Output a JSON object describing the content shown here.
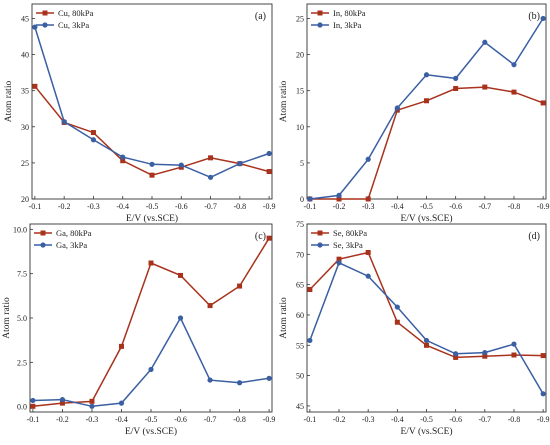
{
  "colors": {
    "series_80": "#a8321c",
    "series_3": "#3a5fa3",
    "axis": "#333333"
  },
  "chart_data": [
    {
      "type": "line",
      "panel_label": "(a)",
      "xlabel": "E/V (vs.SCE)",
      "ylabel": "Atom ratio",
      "x": [
        "-0.1",
        "-0.2",
        "-0.3",
        "-0.4",
        "-0.5",
        "-0.6",
        "-0.7",
        "-0.8",
        "-0.9"
      ],
      "ylim": [
        20,
        47
      ],
      "yticks": [
        20,
        25,
        30,
        35,
        40,
        45
      ],
      "ytick_labels": [
        "20",
        "25",
        "30",
        "35",
        "40",
        "45"
      ],
      "legend_position": "top-left",
      "series": [
        {
          "name": "Cu, 80kPa",
          "values": [
            35.6,
            30.6,
            29.2,
            25.3,
            23.3,
            24.4,
            25.7,
            24.9,
            23.8
          ]
        },
        {
          "name": "Cu, 3kPa",
          "values": [
            43.8,
            30.7,
            28.2,
            25.8,
            24.8,
            24.7,
            23.0,
            24.9,
            26.3
          ]
        }
      ]
    },
    {
      "type": "line",
      "panel_label": "(b)",
      "xlabel": "E/V (vs.SCE)",
      "ylabel": "Atom ratio",
      "x": [
        "-0.1",
        "-0.2",
        "-0.3",
        "-0.4",
        "-0.5",
        "-0.6",
        "-0.7",
        "-0.8",
        "-0.9"
      ],
      "ylim": [
        0,
        27
      ],
      "yticks": [
        0,
        5,
        10,
        15,
        20,
        25
      ],
      "ytick_labels": [
        "0",
        "5",
        "10",
        "15",
        "20",
        "25"
      ],
      "legend_position": "top-left",
      "series": [
        {
          "name": "In, 80kPa",
          "values": [
            0,
            0,
            0,
            12.3,
            13.6,
            15.3,
            15.5,
            14.8,
            13.3
          ]
        },
        {
          "name": "In, 3kPa",
          "values": [
            0,
            0.5,
            5.5,
            12.6,
            17.2,
            16.7,
            21.7,
            18.6,
            25.0
          ]
        }
      ]
    },
    {
      "type": "line",
      "panel_label": "(c)",
      "xlabel": "E/V (vs.SCE)",
      "ylabel": "Atom ratio",
      "x": [
        "-0.1",
        "-0.2",
        "-0.3",
        "-0.4",
        "-0.5",
        "-0.6",
        "-0.7",
        "-0.8",
        "-0.9"
      ],
      "ylim": [
        -0.3,
        10.3
      ],
      "yticks": [
        0,
        2.5,
        5,
        7.5,
        10
      ],
      "ytick_labels": [
        "0.0",
        "2.5",
        "5.0",
        "7.5",
        "10.0"
      ],
      "legend_position": "top-left",
      "series": [
        {
          "name": "Ga, 80kPa",
          "values": [
            0.02,
            0.2,
            0.3,
            3.4,
            8.1,
            7.4,
            5.7,
            6.8,
            9.5
          ]
        },
        {
          "name": "Ga, 3kPa",
          "values": [
            0.35,
            0.4,
            0.02,
            0.2,
            2.1,
            5.0,
            1.5,
            1.35,
            1.6
          ]
        }
      ]
    },
    {
      "type": "line",
      "panel_label": "(d)",
      "xlabel": "E/V (vs.SCE)",
      "ylabel": "Atom ratio",
      "x": [
        "-0.1",
        "-0.2",
        "-0.3",
        "-0.4",
        "-0.5",
        "-0.6",
        "-0.7",
        "-0.8",
        "-0.9"
      ],
      "ylim": [
        44,
        75
      ],
      "yticks": [
        45,
        50,
        55,
        60,
        65,
        70,
        75
      ],
      "ytick_labels": [
        "45",
        "50",
        "55",
        "60",
        "65",
        "70",
        "75"
      ],
      "legend_position": "top-left",
      "series": [
        {
          "name": "Se, 80kPa",
          "values": [
            64.2,
            69.2,
            70.3,
            58.8,
            55.0,
            53.0,
            53.2,
            53.4,
            53.3
          ]
        },
        {
          "name": "Se, 3kPa",
          "values": [
            55.8,
            68.6,
            66.4,
            61.3,
            55.8,
            53.6,
            53.8,
            55.2,
            47.0
          ]
        }
      ]
    }
  ]
}
